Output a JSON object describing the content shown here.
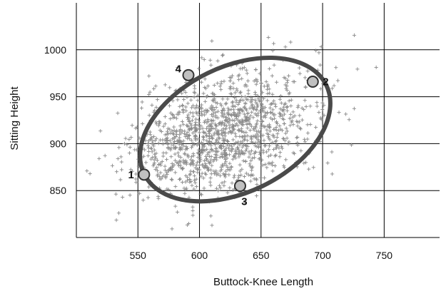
{
  "chart_data": {
    "type": "scatter",
    "title": "",
    "xlabel": "Buttock-Knee Length",
    "ylabel": "Sitting Height",
    "xlim": [
      500,
      795
    ],
    "ylim": [
      800,
      1050
    ],
    "x_ticks": [
      550,
      600,
      650,
      700,
      750
    ],
    "y_ticks": [
      850,
      900,
      950,
      1000
    ],
    "grid": true,
    "marker": "+",
    "marker_color": "#8a8a8a",
    "distribution": {
      "n": 1400,
      "x_mean": 619,
      "y_mean": 911,
      "x_sd": 36,
      "y_sd": 33,
      "correlation": 0.35
    },
    "ellipse": {
      "center": [
        629,
        915
      ],
      "stroke_color": "#4a4a4a"
    },
    "labeled_points": [
      {
        "label": "1",
        "x": 555,
        "y": 867
      },
      {
        "label": "2",
        "x": 692,
        "y": 966
      },
      {
        "label": "3",
        "x": 633,
        "y": 855
      },
      {
        "label": "4",
        "x": 591,
        "y": 973
      }
    ],
    "labeled_point_fill": "#c0c0c0"
  }
}
